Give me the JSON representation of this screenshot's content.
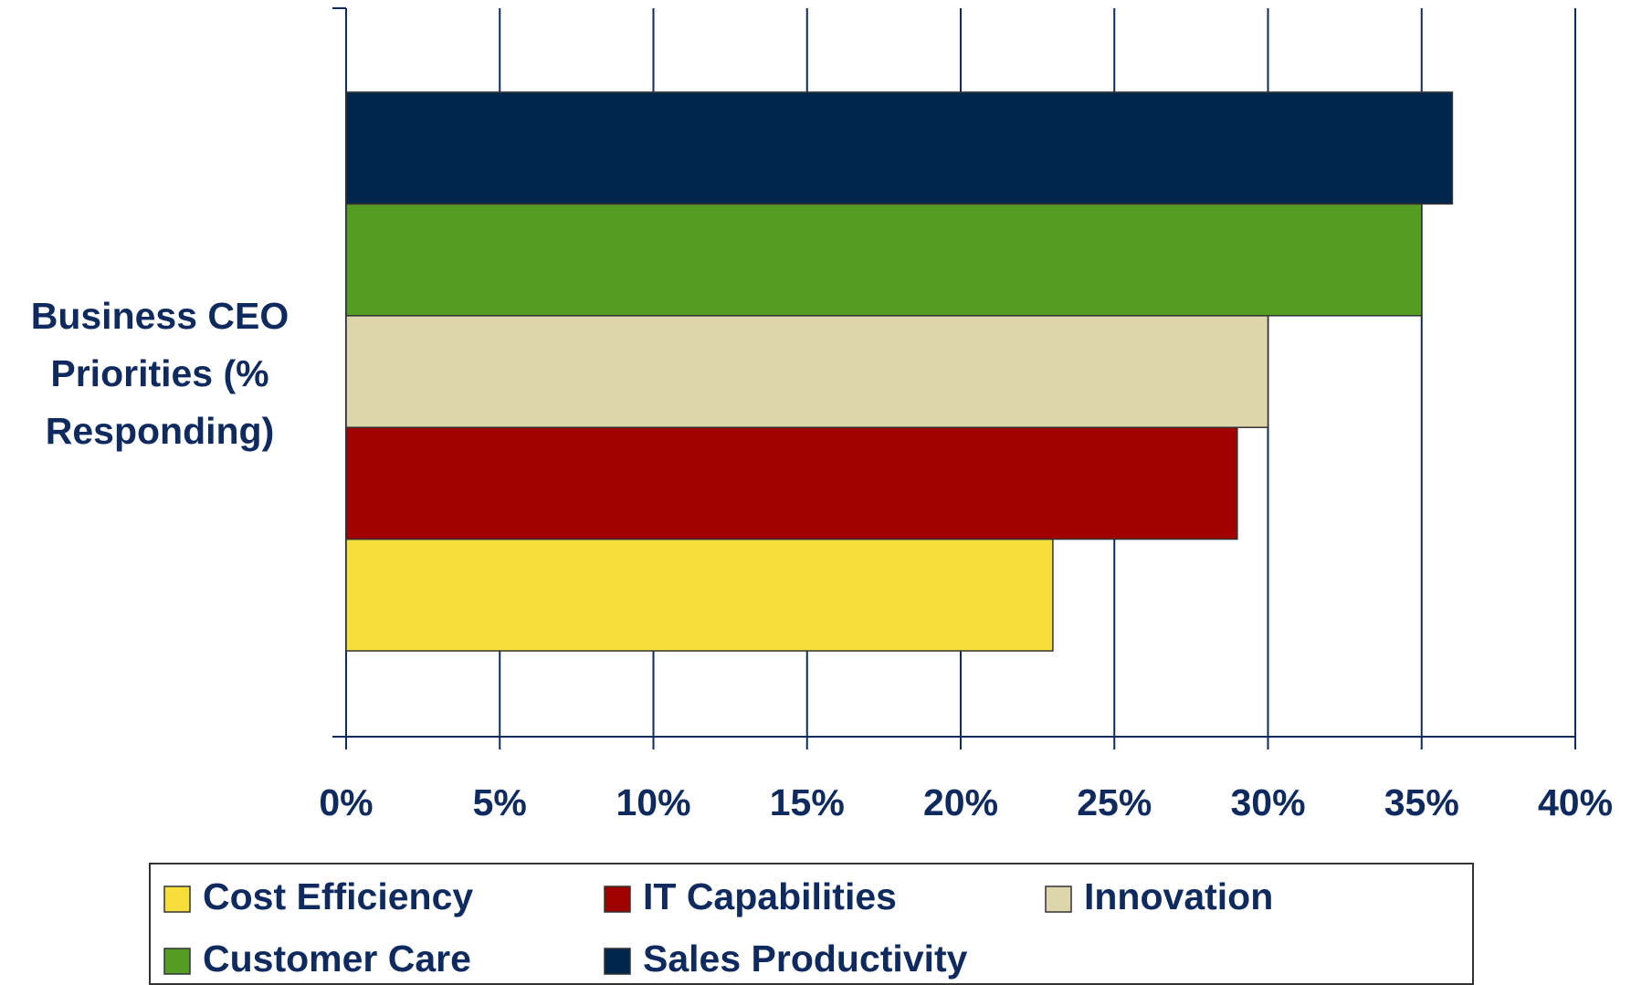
{
  "chart_data": {
    "type": "hbar",
    "categories": [
      "Business CEO Priorities (% Responding)"
    ],
    "series": [
      {
        "name": "Cost Efficiency",
        "color": "#f8de3a",
        "values": [
          23
        ]
      },
      {
        "name": "IT Capabilities",
        "color": "#a10000",
        "values": [
          29
        ]
      },
      {
        "name": "Innovation",
        "color": "#ddd5ab",
        "values": [
          30
        ]
      },
      {
        "name": "Customer Care",
        "color": "#559c25",
        "values": [
          35
        ]
      },
      {
        "name": "Sales Productivity",
        "color": "#00264d",
        "values": [
          36
        ]
      }
    ],
    "xlim": [
      0,
      40
    ],
    "xticks": [
      {
        "value": 0,
        "label": "0%"
      },
      {
        "value": 5,
        "label": "5%"
      },
      {
        "value": 10,
        "label": "10%"
      },
      {
        "value": 15,
        "label": "15%"
      },
      {
        "value": 20,
        "label": "20%"
      },
      {
        "value": 25,
        "label": "25%"
      },
      {
        "value": 30,
        "label": "30%"
      },
      {
        "value": 35,
        "label": "35%"
      },
      {
        "value": 40,
        "label": "40%"
      }
    ],
    "grid": true
  }
}
